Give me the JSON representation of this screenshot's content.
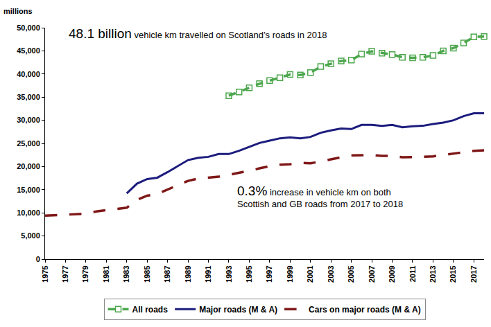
{
  "chart_data": {
    "type": "line",
    "y_label": "millions",
    "annotations": [
      {
        "emphasis": "48.1 billion",
        "lines": [
          "vehicle km travelled on Scotland’s roads in 2018"
        ]
      },
      {
        "emphasis": "0.3%",
        "lines": [
          "increase in vehicle km on both",
          "Scottish and GB roads from 2017 to 2018"
        ]
      }
    ],
    "x": [
      1975,
      1976,
      1977,
      1978,
      1979,
      1980,
      1981,
      1982,
      1983,
      1984,
      1985,
      1986,
      1987,
      1988,
      1989,
      1990,
      1991,
      1992,
      1993,
      1994,
      1995,
      1996,
      1997,
      1998,
      1999,
      2000,
      2001,
      2002,
      2003,
      2004,
      2005,
      2006,
      2007,
      2008,
      2009,
      2010,
      2011,
      2012,
      2013,
      2014,
      2015,
      2016,
      2017,
      2018
    ],
    "series": [
      {
        "name": "All roads",
        "color": "#4ca64c",
        "line_style": "dash",
        "marker": "square-open",
        "values": [
          null,
          null,
          null,
          null,
          null,
          null,
          null,
          null,
          null,
          null,
          null,
          null,
          null,
          null,
          null,
          null,
          null,
          null,
          35300,
          36100,
          37000,
          37900,
          38600,
          39200,
          39900,
          39800,
          40300,
          41600,
          42200,
          42800,
          43000,
          44300,
          44900,
          44500,
          44200,
          43600,
          43500,
          43600,
          44000,
          45000,
          45600,
          46700,
          48000,
          48100
        ]
      },
      {
        "name": "Major roads (M & A)",
        "color": "#1c1c7e",
        "line_style": "solid",
        "values": [
          null,
          null,
          null,
          null,
          null,
          null,
          null,
          null,
          14200,
          16300,
          17300,
          17600,
          18800,
          20100,
          21400,
          21900,
          22100,
          22700,
          22700,
          23400,
          24300,
          25100,
          25600,
          26100,
          26300,
          26100,
          26400,
          27300,
          27800,
          28200,
          28100,
          29000,
          29000,
          28800,
          29000,
          28500,
          28700,
          28800,
          29200,
          29500,
          30000,
          30900,
          31500,
          31500
        ]
      },
      {
        "name": "Cars on major roads (M & A)",
        "color": "#7f1717",
        "line_style": "longdash",
        "values": [
          9400,
          9500,
          9600,
          9700,
          9800,
          10300,
          10600,
          10900,
          11100,
          12800,
          13700,
          14100,
          15000,
          15900,
          16900,
          17400,
          17600,
          17800,
          18200,
          18600,
          19100,
          19600,
          20100,
          20400,
          20500,
          20800,
          20700,
          21100,
          21600,
          22000,
          22400,
          22400,
          22500,
          22300,
          22300,
          22000,
          22000,
          22100,
          22200,
          22500,
          22900,
          23100,
          23400,
          23500
        ]
      }
    ],
    "xlim": [
      1975,
      2018
    ],
    "xticks": [
      1975,
      1977,
      1979,
      1981,
      1983,
      1985,
      1987,
      1989,
      1991,
      1993,
      1995,
      1997,
      1999,
      2001,
      2003,
      2005,
      2007,
      2009,
      2011,
      2013,
      2015,
      2017
    ],
    "ylim": [
      0,
      50000
    ],
    "yticks": [
      0,
      {
        "value": 5000,
        "label": "5,000"
      },
      {
        "value": 10000,
        "label": "10,000"
      },
      {
        "value": 15000,
        "label": "15,000"
      },
      {
        "value": 20000,
        "label": "20,000"
      },
      {
        "value": 25000,
        "label": "25,000"
      },
      {
        "value": 30000,
        "label": "30,000"
      },
      {
        "value": 35000,
        "label": "35,000"
      },
      {
        "value": 40000,
        "label": "40,000"
      },
      {
        "value": 45000,
        "label": "45,000"
      },
      {
        "value": 50000,
        "label": "50,000"
      }
    ],
    "grid": false,
    "legend": "bottom"
  }
}
